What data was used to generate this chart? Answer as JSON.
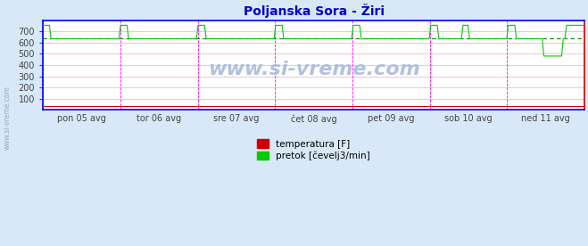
{
  "title": "Poljanska Sora - Žiri",
  "title_color": "#0000cc",
  "bg_color": "#d8e8f8",
  "plot_bg_color": "#ffffff",
  "ylim": [
    0,
    800
  ],
  "yticks": [
    100,
    200,
    300,
    400,
    500,
    600,
    700
  ],
  "x_labels": [
    "pon 05 avg",
    "tor 06 avg",
    "sre 07 avg",
    "čet 08 avg",
    "pet 09 avg",
    "sob 10 avg",
    "ned 11 avg"
  ],
  "grid_color": "#ffaaaa",
  "vline_color": "#ff00ff",
  "border_left_color": "#0000ff",
  "border_top_color": "#0000ff",
  "border_bottom_color": "#0000ff",
  "border_right_color": "#cc0000",
  "avg_line_value": 635,
  "avg_line_color": "#008800",
  "temp_color": "#cc0000",
  "temp_value": 32,
  "flow_color": "#00cc00",
  "flow_high": 755,
  "flow_low": 635,
  "flow_dip": 480,
  "legend_temp": "temperatura [F]",
  "legend_flow": "pretok [čevelj3/min]",
  "watermark": "www.si-vreme.com",
  "watermark_color": "#aabbdd",
  "side_label": "www.si-vreme.com",
  "n_points": 336,
  "days": 7
}
